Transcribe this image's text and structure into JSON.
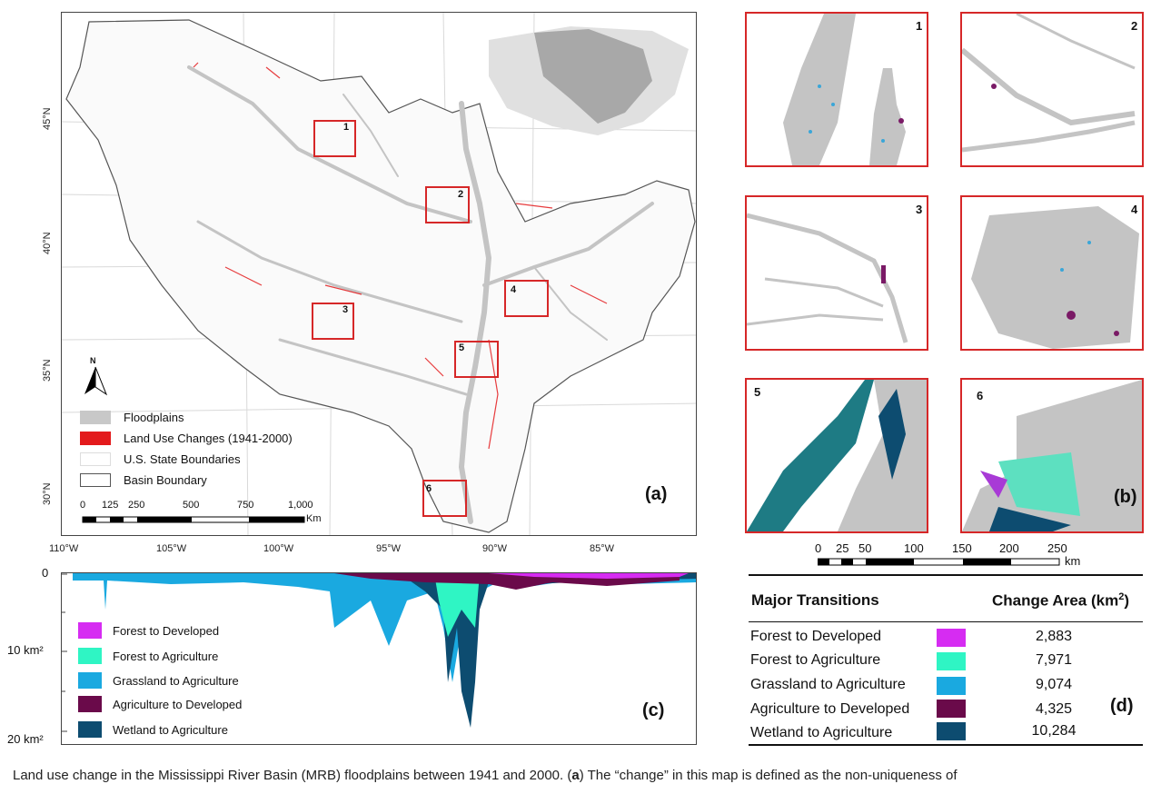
{
  "panel_a": {
    "tag": "(a)",
    "lon_labels": [
      "110°W",
      "105°W",
      "100°W",
      "95°W",
      "90°W",
      "85°W"
    ],
    "lat_labels": [
      "45°N",
      "40°N",
      "35°N",
      "30°N"
    ],
    "north_label": "N",
    "boxes": [
      "1",
      "2",
      "3",
      "4",
      "5",
      "6"
    ],
    "legend": [
      {
        "label": "Floodplains",
        "color": "#c8c8c8"
      },
      {
        "label": "Land Use Changes (1941-2000)",
        "color": "#e31a1c"
      },
      {
        "label": "U.S. State Boundaries",
        "color": "#ffffff"
      },
      {
        "label": "Basin Boundary",
        "color": "#ffffff"
      }
    ],
    "scale": {
      "ticks": [
        "0",
        "125",
        "250",
        "500",
        "750",
        "1,000"
      ],
      "unit": "Km"
    }
  },
  "panel_b": {
    "tag": "(b)",
    "insets": [
      "1",
      "2",
      "3",
      "4",
      "5",
      "6"
    ],
    "scale": {
      "ticks": [
        "0",
        "25",
        "50",
        "100",
        "150",
        "200",
        "250"
      ],
      "unit": "km"
    }
  },
  "panel_c": {
    "tag": "(c)",
    "y_labels": {
      "top": "0",
      "mid": "10 km²",
      "bottom": "20 km²"
    },
    "legend": [
      {
        "label": "Forest to Developed",
        "color": "#d62cf2"
      },
      {
        "label": "Forest to Agriculture",
        "color": "#2ff5c4"
      },
      {
        "label": "Grassland to Agriculture",
        "color": "#1aa9e0"
      },
      {
        "label": "Agriculture to Developed",
        "color": "#6a0a4a"
      },
      {
        "label": "Wetland to Agriculture",
        "color": "#0d4c70"
      }
    ]
  },
  "panel_d": {
    "tag": "(d)",
    "header_left": "Major Transitions",
    "header_right": "Change Area (km",
    "header_sup": "2",
    "header_close": ")",
    "rows": [
      {
        "label": "Forest to Developed",
        "value": "2,883",
        "color": "#d62cf2"
      },
      {
        "label": "Forest to Agriculture",
        "value": "7,971",
        "color": "#2ff5c4"
      },
      {
        "label": "Grassland to Agriculture",
        "value": "9,074",
        "color": "#1aa9e0"
      },
      {
        "label": "Agriculture to Developed",
        "value": "4,325",
        "color": "#6a0a4a"
      },
      {
        "label": "Wetland to Agriculture",
        "value": "10,284",
        "color": "#0d4c70"
      }
    ]
  },
  "caption": {
    "before": "Land use change in the Mississippi River Basin (MRB) floodplains between 1941 and 2000. (",
    "bold": "a",
    "after": ") The “change” in this map is defined as the non-uniqueness of"
  }
}
